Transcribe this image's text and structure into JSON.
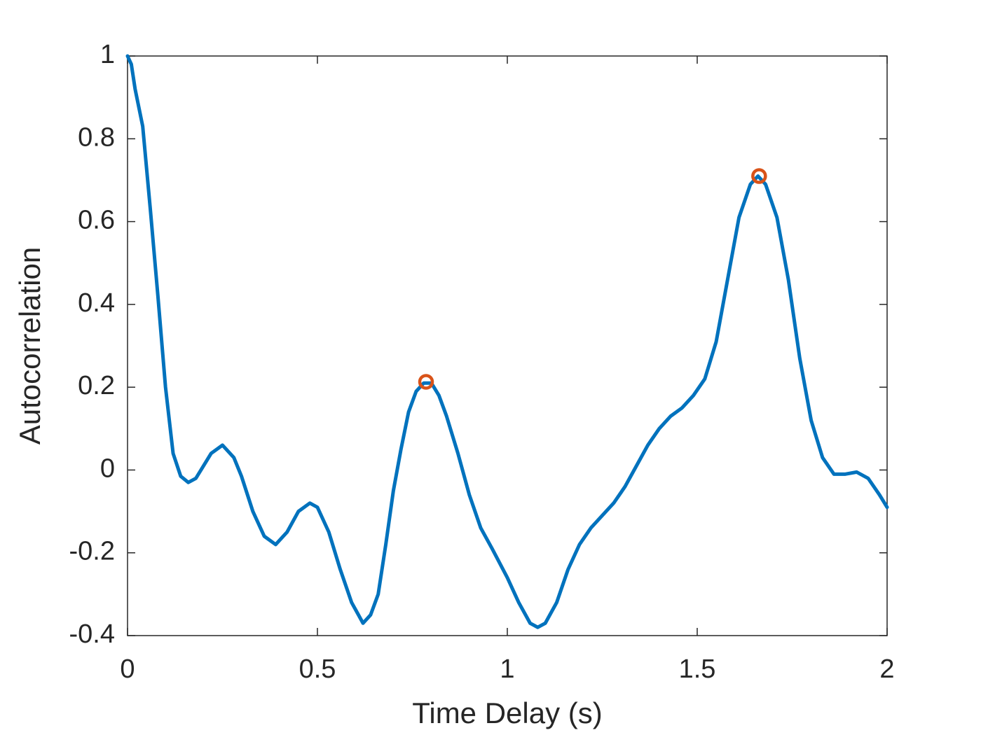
{
  "chart_data": {
    "type": "line",
    "xlabel": "Time Delay (s)",
    "ylabel": "Autocorrelation",
    "x": [
      0,
      0.01,
      0.02,
      0.04,
      0.06,
      0.08,
      0.1,
      0.12,
      0.14,
      0.16,
      0.18,
      0.2,
      0.22,
      0.25,
      0.28,
      0.3,
      0.33,
      0.36,
      0.39,
      0.42,
      0.45,
      0.48,
      0.5,
      0.53,
      0.56,
      0.59,
      0.62,
      0.64,
      0.66,
      0.68,
      0.7,
      0.72,
      0.74,
      0.76,
      0.78,
      0.8,
      0.82,
      0.84,
      0.87,
      0.9,
      0.93,
      0.96,
      1.0,
      1.03,
      1.06,
      1.08,
      1.1,
      1.13,
      1.16,
      1.19,
      1.22,
      1.25,
      1.28,
      1.31,
      1.34,
      1.37,
      1.4,
      1.43,
      1.46,
      1.49,
      1.52,
      1.55,
      1.58,
      1.61,
      1.64,
      1.66,
      1.68,
      1.71,
      1.74,
      1.77,
      1.8,
      1.83,
      1.86,
      1.89,
      1.92,
      1.95,
      1.98,
      2.0
    ],
    "series": [
      {
        "color": "#0072bd",
        "values": [
          1,
          0.98,
          0.92,
          0.83,
          0.63,
          0.42,
          0.2,
          0.04,
          -0.015,
          -0.03,
          -0.02,
          0.01,
          0.04,
          0.06,
          0.03,
          -0.015,
          -0.1,
          -0.16,
          -0.18,
          -0.15,
          -0.1,
          -0.08,
          -0.09,
          -0.15,
          -0.24,
          -0.32,
          -0.37,
          -0.35,
          -0.3,
          -0.18,
          -0.05,
          0.05,
          0.14,
          0.19,
          0.21,
          0.21,
          0.18,
          0.13,
          0.04,
          -0.06,
          -0.14,
          -0.19,
          -0.26,
          -0.32,
          -0.37,
          -0.38,
          -0.37,
          -0.32,
          -0.24,
          -0.18,
          -0.14,
          -0.11,
          -0.08,
          -0.04,
          0.01,
          0.06,
          0.1,
          0.13,
          0.15,
          0.18,
          0.22,
          0.31,
          0.46,
          0.61,
          0.69,
          0.71,
          0.69,
          0.61,
          0.46,
          0.27,
          0.12,
          0.03,
          -0.01,
          -0.01,
          -0.005,
          -0.02,
          -0.06,
          -0.09
        ]
      },
      {
        "color": "#d95319",
        "marker": "circle",
        "x": [
          0.786,
          1.663
        ],
        "values": [
          0.213,
          0.71
        ]
      }
    ],
    "xlim": [
      0,
      2
    ],
    "xticks": [
      0,
      0.5,
      1,
      1.5,
      2
    ],
    "ylim": [
      -0.4,
      1
    ],
    "yticks": [
      -0.4,
      -0.2,
      0,
      0.2,
      0.4,
      0.6,
      0.8,
      1
    ],
    "grid": false
  }
}
